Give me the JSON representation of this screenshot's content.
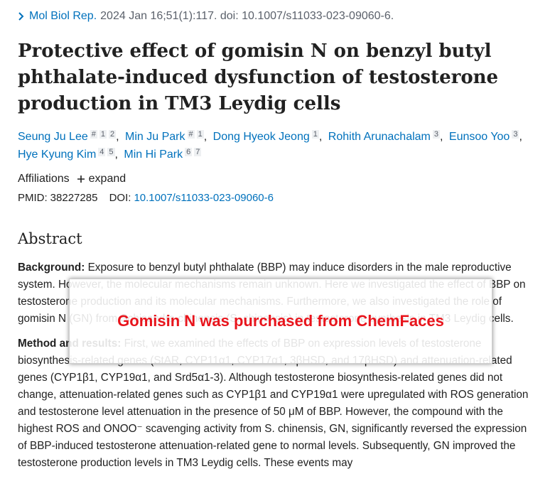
{
  "citation": {
    "journal": "Mol Biol Rep.",
    "details": "2024 Jan 16;51(1):117. doi: 10.1007/s11033-023-09060-6."
  },
  "title": "Protective effect of gomisin N on benzyl butyl phthalate-induced dysfunction of testosterone production in TM3 Leydig cells",
  "authors": [
    {
      "name": "Seung Ju Lee",
      "affiliations": [
        "#",
        "1",
        "2"
      ]
    },
    {
      "name": "Min Ju Park",
      "affiliations": [
        "#",
        "1"
      ]
    },
    {
      "name": "Dong Hyeok Jeong",
      "affiliations": [
        "1"
      ]
    },
    {
      "name": "Rohith Arunachalam",
      "affiliations": [
        "3"
      ]
    },
    {
      "name": "Eunsoo Yoo",
      "affiliations": [
        "3"
      ]
    },
    {
      "name": "Hye Kyung Kim",
      "affiliations": [
        "4",
        "5"
      ]
    },
    {
      "name": "Min Hi Park",
      "affiliations": [
        "6",
        "7"
      ]
    }
  ],
  "affiliations_label": "Affiliations",
  "expand_label": "expand",
  "pmid_label": "PMID:",
  "pmid": "38227285",
  "doi_label": "DOI:",
  "doi": "10.1007/s11033-023-09060-6",
  "abstract": {
    "heading": "Abstract",
    "sections": [
      {
        "label": "Background:",
        "text": "Exposure to benzyl butyl phthalate (BBP) may induce disorders in the male reproductive system. However, the molecular mechanisms remain unknown. Here we investigated the effect of BBP on testosterone production and its molecular mechanisms. Furthermore, we also investigated the role of gomisin N (GN) from Schisandra chinensis (S. chinensis) in testosterone synthesis in TM3 Leydig cells."
      },
      {
        "label": "Method and results:",
        "text": "First, we examined the effects of BBP on expression levels of testosterone biosynthesis-related genes (StAR, CYP11α1, CYP17α1, 3βHSD, and 17βHSD) and attenuation-related genes (CYP1β1, CYP19α1, and Srd5α1-3). Although testosterone biosynthesis-related genes did not change, attenuation-related genes such as CYP1β1 and CYP19α1 were upregulated with ROS generation and testosterone level attenuation in the presence of 50 μM of BBP. However, the compound with the highest ROS and ONOO⁻ scavenging activity from S. chinensis, GN, significantly reversed the expression of BBP-induced testosterone attenuation-related gene to normal levels. Subsequently, GN improved the testosterone production levels in TM3 Leydig cells. These events may"
      }
    ]
  },
  "overlay": "Gomisin N was purchased from ChemFaces"
}
